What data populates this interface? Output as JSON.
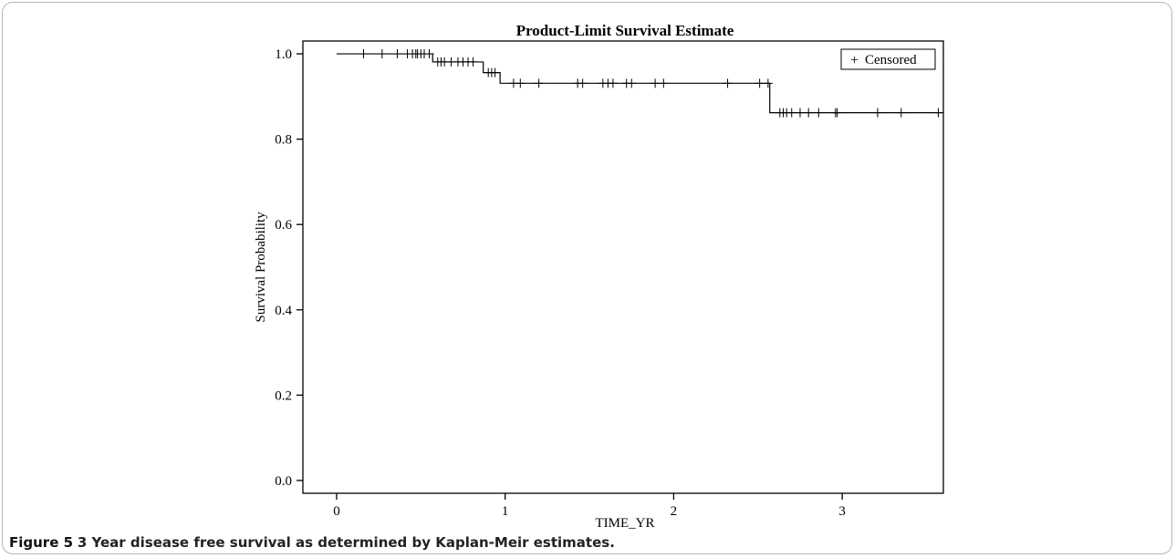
{
  "chart_data": {
    "type": "line",
    "title": "Product-Limit Survival Estimate",
    "xlabel": "TIME_YR",
    "ylabel": "Survival Probability",
    "xlim": [
      -0.2,
      3.6
    ],
    "ylim": [
      -0.03,
      1.03
    ],
    "xticks": [
      0,
      1,
      2,
      3
    ],
    "xtick_labels": [
      "0",
      "1",
      "2",
      "3"
    ],
    "yticks": [
      0.0,
      0.2,
      0.4,
      0.6,
      0.8,
      1.0
    ],
    "ytick_labels": [
      "0.0",
      "0.2",
      "0.4",
      "0.6",
      "0.8",
      "1.0"
    ],
    "grid": false,
    "legend": {
      "placement": "top-right",
      "entries": [
        {
          "symbol": "+",
          "label": "Censored"
        }
      ]
    },
    "series": [
      {
        "step_curve": {
          "x": [
            0,
            0.57,
            0.87,
            0.97,
            2.57,
            3.6
          ],
          "y": [
            1.0,
            0.981,
            0.956,
            0.931,
            0.862,
            0.862
          ]
        },
        "censored": {
          "x": [
            0.16,
            0.27,
            0.36,
            0.42,
            0.45,
            0.47,
            0.48,
            0.5,
            0.52,
            0.55,
            0.6,
            0.62,
            0.64,
            0.68,
            0.72,
            0.75,
            0.78,
            0.81,
            0.9,
            0.92,
            0.94,
            1.05,
            1.09,
            1.2,
            1.43,
            1.46,
            1.58,
            1.61,
            1.64,
            1.72,
            1.75,
            1.89,
            1.94,
            2.32,
            2.51,
            2.56,
            2.63,
            2.65,
            2.67,
            2.7,
            2.75,
            2.8,
            2.86,
            2.96,
            2.97,
            3.21,
            3.35,
            3.57
          ],
          "y": [
            1.0,
            1.0,
            1.0,
            1.0,
            1.0,
            1.0,
            1.0,
            1.0,
            1.0,
            1.0,
            0.981,
            0.981,
            0.981,
            0.981,
            0.981,
            0.981,
            0.981,
            0.981,
            0.956,
            0.956,
            0.956,
            0.931,
            0.931,
            0.931,
            0.931,
            0.931,
            0.931,
            0.931,
            0.931,
            0.931,
            0.931,
            0.931,
            0.931,
            0.931,
            0.931,
            0.931,
            0.862,
            0.862,
            0.862,
            0.862,
            0.862,
            0.862,
            0.862,
            0.862,
            0.862,
            0.862,
            0.862,
            0.862
          ]
        }
      }
    ]
  },
  "caption": {
    "label": "Figure 5",
    "text": "3 Year disease free survival as determined by Kaplan-Meir estimates."
  },
  "colors": {
    "line": "#000000",
    "frame": "#b5b5b5",
    "text": "#000000"
  }
}
